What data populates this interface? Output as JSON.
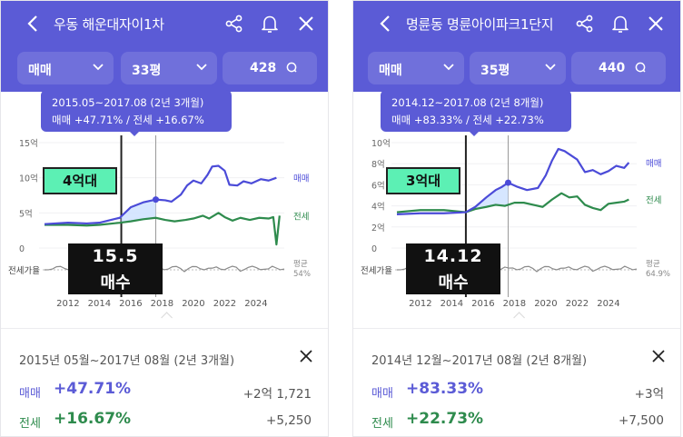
{
  "colors": {
    "header": "#5b5bd6",
    "sale_line": "#4b4bd8",
    "rent_line": "#2e8b4d",
    "ratio_line": "#8a8a8a",
    "highlight_box": "#5cf0b4",
    "sale_fill": "#cfe2ff"
  },
  "panels": [
    {
      "title": "우동 해운대자이1차",
      "filters": {
        "type": "매매",
        "size": "33평",
        "count": "428"
      },
      "tooltip": {
        "period": "2015.05~2017.08 (2년 3개월)",
        "line2": "매매 +47.71%  /  전세 +16.67%"
      },
      "annotation": {
        "price_band": "4억대",
        "number": "15.5",
        "label": "매수"
      },
      "chart_data": {
        "type": "line",
        "y_ticks": [
          "15억",
          "10억",
          "5억",
          "0"
        ],
        "ylim": [
          0,
          15
        ],
        "x_ticks": [
          "2012",
          "2014",
          "2016",
          "2018",
          "2020",
          "2022",
          "2024"
        ],
        "xlim": [
          2010.5,
          2025.8
        ],
        "series": [
          {
            "name": "매매",
            "x": [
              2010.5,
              2012,
              2013.2,
              2014,
              2015.3,
              2016,
              2016.8,
              2017.6,
              2018.2,
              2018.6,
              2019.2,
              2019.6,
              2020.0,
              2020.5,
              2020.9,
              2021.2,
              2021.6,
              2022.0,
              2022.3,
              2022.8,
              2023.2,
              2023.7,
              2024.3,
              2024.8,
              2025.3
            ],
            "values": [
              3.4,
              3.6,
              3.5,
              3.6,
              4.3,
              5.8,
              6.5,
              6.9,
              6.8,
              6.6,
              7.6,
              8.9,
              9.6,
              9.2,
              10.4,
              11.6,
              11.7,
              11.0,
              9.0,
              8.9,
              9.5,
              9.2,
              9.8,
              9.6,
              10.0
            ]
          },
          {
            "name": "전세",
            "x": [
              2010.5,
              2012,
              2013.2,
              2014,
              2015.3,
              2016,
              2016.8,
              2017.6,
              2018.2,
              2018.8,
              2019.5,
              2020.0,
              2020.6,
              2021.0,
              2021.6,
              2022.0,
              2022.5,
              2023.0,
              2023.6,
              2024.2,
              2024.8,
              2025.1,
              2025.3,
              2025.5
            ],
            "values": [
              3.3,
              3.3,
              3.2,
              3.3,
              3.6,
              3.8,
              4.1,
              4.3,
              4.0,
              3.8,
              4.0,
              4.2,
              4.6,
              4.2,
              5.0,
              4.4,
              3.9,
              4.3,
              4.0,
              4.3,
              4.2,
              4.4,
              0.5,
              4.6
            ]
          }
        ],
        "ratio_label": "전세가율",
        "ratio_legend": [
          "평균",
          "54%"
        ],
        "period_x": [
          2015.4,
          2017.6
        ],
        "highlight_x": 2017.6
      },
      "summary": {
        "period": "2015년 05월~2017년 08월 (2년 3개월)",
        "sale": {
          "label": "매매",
          "pct": "+47.71%",
          "amount": "+2억 1,721"
        },
        "rent": {
          "label": "전세",
          "pct": "+16.67%",
          "amount": "+5,250"
        }
      }
    },
    {
      "title": "명륜동 명륜아이파크1단지",
      "filters": {
        "type": "매매",
        "size": "35평",
        "count": "440"
      },
      "tooltip": {
        "period": "2014.12~2017.08 (2년 8개월)",
        "line2": "매매 +83.33%  /  전세 +22.73%"
      },
      "annotation": {
        "price_band": "3억대",
        "number": "14.12",
        "label": "매수"
      },
      "chart_data": {
        "type": "line",
        "y_ticks": [
          "10억",
          "8억",
          "6억",
          "4억",
          "2억",
          "0"
        ],
        "ylim": [
          0,
          10
        ],
        "x_ticks": [
          "2012",
          "2014",
          "2016",
          "2018",
          "2020",
          "2022",
          "2024"
        ],
        "xlim": [
          2010.5,
          2025.8
        ],
        "series": [
          {
            "name": "매매",
            "x": [
              2010.5,
              2012,
              2013.5,
              2014.9,
              2015.5,
              2016.2,
              2016.8,
              2017.2,
              2017.6,
              2018.2,
              2018.8,
              2019.5,
              2020.0,
              2020.4,
              2020.8,
              2021.2,
              2021.6,
              2022.0,
              2022.5,
              2023.0,
              2023.5,
              2024.0,
              2024.5,
              2025.0,
              2025.3
            ],
            "values": [
              3.2,
              3.3,
              3.3,
              3.4,
              3.9,
              4.8,
              5.5,
              5.8,
              6.2,
              5.8,
              5.5,
              5.7,
              6.9,
              8.3,
              9.4,
              9.2,
              8.8,
              8.4,
              7.2,
              7.4,
              7.0,
              7.3,
              7.8,
              7.6,
              8.1
            ]
          },
          {
            "name": "전세",
            "x": [
              2010.5,
              2012,
              2013.5,
              2014.9,
              2015.5,
              2016.2,
              2016.8,
              2017.4,
              2018.0,
              2018.6,
              2019.2,
              2019.8,
              2020.4,
              2021.0,
              2021.5,
              2022.0,
              2022.5,
              2023.0,
              2023.5,
              2024.0,
              2024.5,
              2025.0,
              2025.3
            ],
            "values": [
              3.4,
              3.6,
              3.6,
              3.4,
              3.7,
              3.9,
              4.1,
              4.0,
              4.3,
              4.3,
              4.1,
              3.9,
              4.6,
              5.2,
              4.8,
              4.9,
              4.1,
              3.8,
              3.6,
              4.2,
              4.3,
              4.4,
              4.6
            ]
          }
        ],
        "ratio_label": "전세가율",
        "ratio_legend": [
          "평균",
          "64.9%"
        ],
        "period_x": [
          2014.9,
          2017.6
        ],
        "highlight_x": 2017.6
      },
      "summary": {
        "period": "2014년 12월~2017년 08월 (2년 8개월)",
        "sale": {
          "label": "매매",
          "pct": "+83.33%",
          "amount": "+3억"
        },
        "rent": {
          "label": "전세",
          "pct": "+22.73%",
          "amount": "+7,500"
        }
      }
    }
  ],
  "legend": {
    "sale": "매매",
    "rent": "전세"
  }
}
